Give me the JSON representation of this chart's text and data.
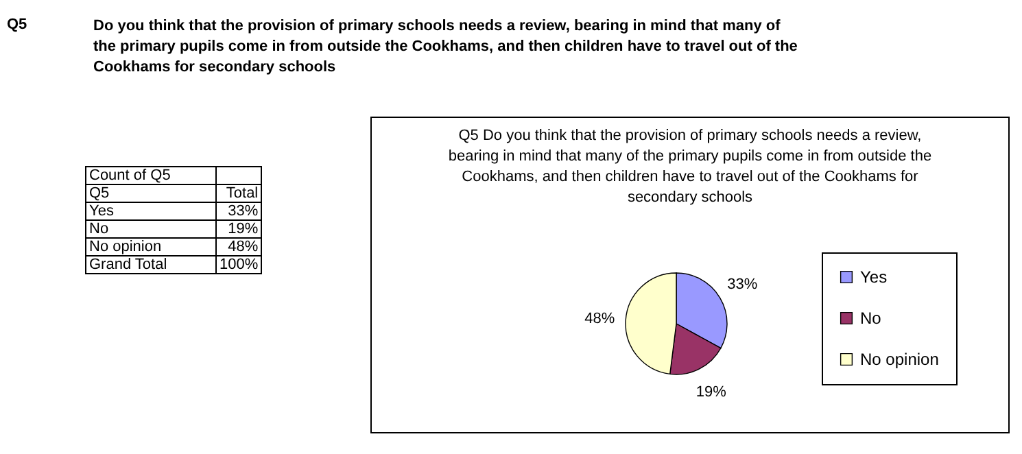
{
  "chart_data": {
    "type": "pie",
    "title": "Q5 Do you think that the provision of primary schools needs a review, bearing in mind that many of the primary pupils come in from outside the Cookhams, and then children have to travel out of the Cookhams for secondary schools",
    "categories": [
      "Yes",
      "No",
      "No opinion"
    ],
    "values": [
      33,
      19,
      48
    ],
    "value_labels": [
      "33%",
      "19%",
      "48%"
    ],
    "colors": [
      "#9999ff",
      "#993366",
      "#ffffcc"
    ],
    "legend": "right",
    "annotations": [
      "Q5",
      "Do you think that the provision of primary schools needs a review, bearing in mind that many of the primary pupils come in from outside the Cookhams, and then children have to travel out of the Cookhams for secondary schools",
      "Count of Q5",
      "Q5",
      "Total",
      "Grand Total",
      "100%"
    ]
  }
}
